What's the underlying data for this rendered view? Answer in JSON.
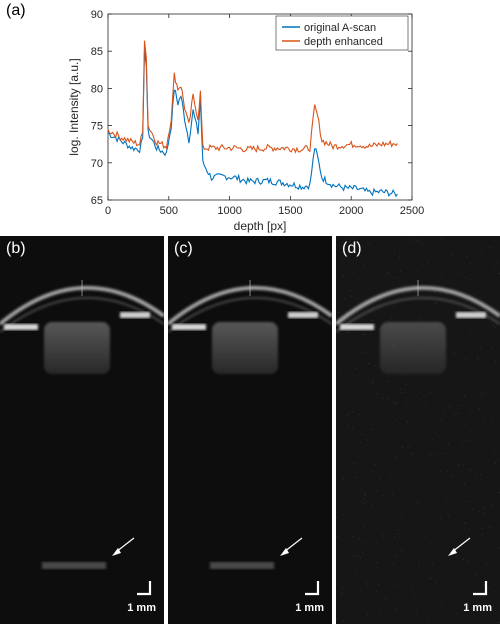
{
  "panel_a_label": "(a)",
  "chart_data": {
    "type": "line",
    "title": "",
    "xlabel": "depth [px]",
    "ylabel": "log. Intensity [a.u.]",
    "xlim": [
      0,
      2500
    ],
    "ylim": [
      65,
      90
    ],
    "xticks": [
      0,
      500,
      1000,
      1500,
      2000,
      2500
    ],
    "yticks": [
      65,
      70,
      75,
      80,
      85,
      90
    ],
    "legend_position": "top-right",
    "grid": false,
    "series": [
      {
        "name": "original A-scan",
        "color": "#0072BD",
        "points": [
          [
            0,
            74
          ],
          [
            100,
            73
          ],
          [
            200,
            72
          ],
          [
            260,
            71.8
          ],
          [
            285,
            73
          ],
          [
            300,
            85.5
          ],
          [
            315,
            83
          ],
          [
            330,
            74
          ],
          [
            400,
            72
          ],
          [
            480,
            71.2
          ],
          [
            520,
            75
          ],
          [
            545,
            80
          ],
          [
            575,
            78
          ],
          [
            600,
            79
          ],
          [
            630,
            76
          ],
          [
            665,
            73
          ],
          [
            700,
            77
          ],
          [
            740,
            74
          ],
          [
            760,
            78.5
          ],
          [
            780,
            70
          ],
          [
            850,
            68
          ],
          [
            950,
            68.2
          ],
          [
            1050,
            68
          ],
          [
            1150,
            67.5
          ],
          [
            1300,
            67.6
          ],
          [
            1450,
            67.3
          ],
          [
            1600,
            66.8
          ],
          [
            1660,
            67
          ],
          [
            1700,
            72
          ],
          [
            1720,
            71
          ],
          [
            1760,
            68
          ],
          [
            1850,
            67
          ],
          [
            1950,
            66.6
          ],
          [
            2050,
            66.5
          ],
          [
            2150,
            66
          ],
          [
            2250,
            66.1
          ],
          [
            2380,
            65.8
          ]
        ]
      },
      {
        "name": "depth enhanced",
        "color": "#D95319",
        "points": [
          [
            0,
            74.4
          ],
          [
            100,
            73.5
          ],
          [
            200,
            72.8
          ],
          [
            260,
            72.5
          ],
          [
            285,
            74
          ],
          [
            300,
            86.8
          ],
          [
            315,
            84.5
          ],
          [
            330,
            75
          ],
          [
            400,
            72.8
          ],
          [
            480,
            72.2
          ],
          [
            520,
            76
          ],
          [
            545,
            81.8
          ],
          [
            575,
            80
          ],
          [
            600,
            80.4
          ],
          [
            630,
            77.5
          ],
          [
            665,
            75
          ],
          [
            700,
            79
          ],
          [
            740,
            76
          ],
          [
            760,
            79.5
          ],
          [
            780,
            72
          ],
          [
            850,
            72
          ],
          [
            950,
            72
          ],
          [
            1050,
            72
          ],
          [
            1150,
            71.8
          ],
          [
            1300,
            72
          ],
          [
            1450,
            72
          ],
          [
            1600,
            71.8
          ],
          [
            1660,
            72
          ],
          [
            1700,
            77.5
          ],
          [
            1720,
            76.5
          ],
          [
            1760,
            73
          ],
          [
            1850,
            72.2
          ],
          [
            1950,
            72.4
          ],
          [
            2050,
            72.5
          ],
          [
            2150,
            72.2
          ],
          [
            2250,
            72.5
          ],
          [
            2380,
            72.6
          ]
        ]
      }
    ]
  },
  "oct_panels": [
    {
      "label": "(b)",
      "scale_text": "1 mm"
    },
    {
      "label": "(c)",
      "scale_text": "1 mm"
    },
    {
      "label": "(d)",
      "scale_text": "1 mm"
    }
  ]
}
